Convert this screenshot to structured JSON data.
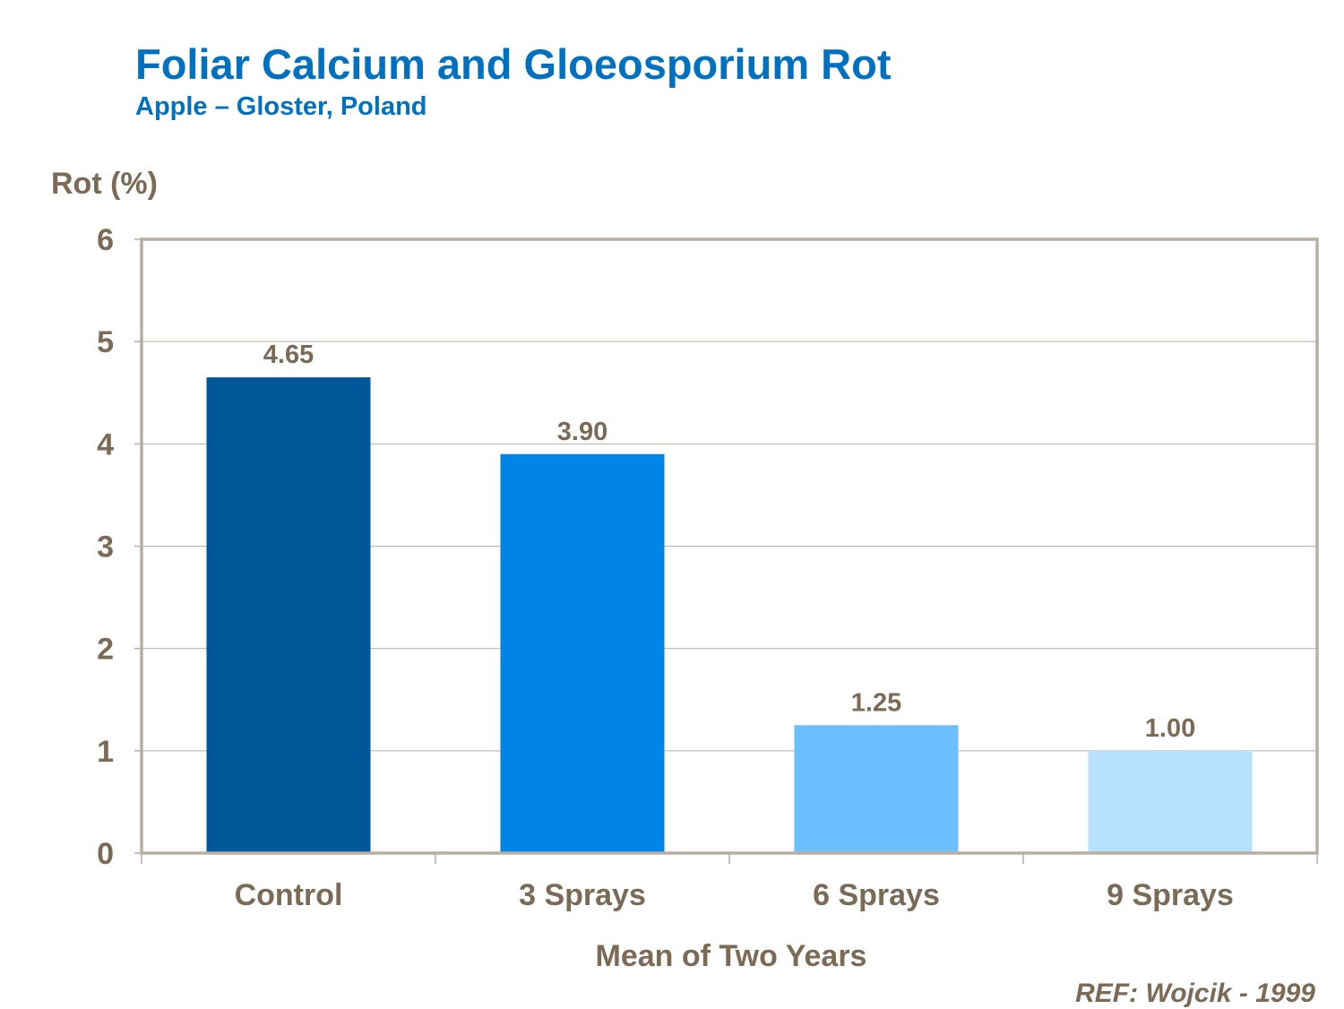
{
  "chart_data": {
    "type": "bar",
    "title": "Foliar Calcium and Gloeosporium Rot",
    "subtitle": "Apple – Gloster, Poland",
    "ylabel": "Rot (%)",
    "xlabel": "Mean of Two Years",
    "categories": [
      "Control",
      "3 Sprays",
      "6 Sprays",
      "9 Sprays"
    ],
    "values": [
      4.65,
      3.9,
      1.25,
      1.0
    ],
    "data_labels": [
      "4.65",
      "3.90",
      "1.25",
      "1.00"
    ],
    "bar_colors": [
      "#005799",
      "#0084e6",
      "#6bbfff",
      "#b8e0ff"
    ],
    "ylim": [
      0,
      6
    ],
    "yticks": [
      0,
      1,
      2,
      3,
      4,
      5,
      6
    ],
    "grid": true,
    "legend": "none",
    "note": "REF: Wojcik - 1999",
    "colors": {
      "title": "#0070c0",
      "text": "#7b6a55",
      "axis": "#b8aea2",
      "grid": "#b8aea2"
    }
  }
}
